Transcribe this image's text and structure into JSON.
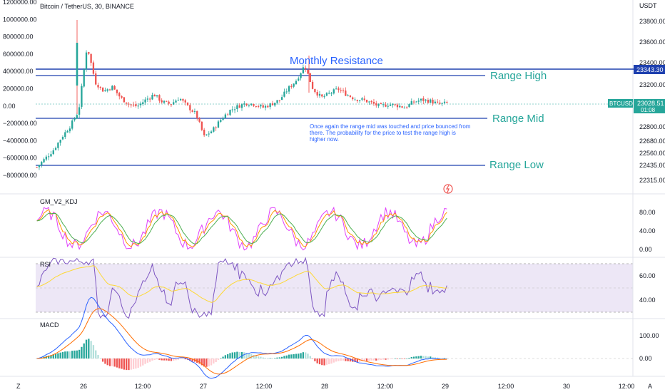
{
  "header": {
    "title": "Bitcoin / TetherUS, 30, BINANCE",
    "price_label": "USDT"
  },
  "left_axis": {
    "ticks": [
      "1200000.00",
      "1000000.00",
      "800000.00",
      "600000.00",
      "400000.00",
      "200000.00",
      "0.00",
      "−200000.00",
      "−400000.00",
      "−600000.00",
      "−800000.00"
    ]
  },
  "price_axis": {
    "ticks": [
      "23800.00",
      "23600.00",
      "23400.00",
      "23200.00",
      "22800.00",
      "22680.00",
      "22560.00",
      "22435.00",
      "22315.00"
    ],
    "resistance_tag": "23343.30",
    "symbol_tag": "BTCUSDT",
    "last_price": "23028.51",
    "countdown": "01:08"
  },
  "levels": {
    "monthly_resistance": "Monthly Resistance",
    "range_high": "Range High",
    "range_mid": "Range Mid",
    "range_low": "Range Low"
  },
  "annotation": [
    "Once again the range mid was touched and price bounced from",
    "there. The probability for the price to test the range high is",
    "higher now."
  ],
  "kdj_pane": {
    "title": "GM_V2_KDJ",
    "ticks": [
      "80.00",
      "40.00",
      "0.00"
    ]
  },
  "rsi_pane": {
    "title": "RSI",
    "ticks": [
      "60.00",
      "40.00"
    ]
  },
  "macd_pane": {
    "title": "MACD",
    "ticks": [
      "100.00",
      "0.00"
    ]
  },
  "time_axis": {
    "labels": [
      "26",
      "12:00",
      "27",
      "12:00",
      "28",
      "12:00",
      "29",
      "12:00",
      "30",
      "12:00"
    ]
  },
  "footer": {
    "left_icon": "Z",
    "right_icon": "A"
  },
  "colors": {
    "up": "#26a69a",
    "down": "#ef5350",
    "level_line": "#1e40af",
    "text_teal": "#26a69a",
    "text_blue": "#2962ff",
    "k": "#e040fb",
    "d": "#ff9800",
    "j": "#4caf50",
    "rsi": "#7e57c2",
    "rsi_ma": "#fdd835",
    "macd": "#2962ff",
    "signal": "#ff6d00"
  },
  "chart_data": {
    "type": "candlestick",
    "title": "Bitcoin / TetherUS, 30, BINANCE",
    "x_labels": [
      "26",
      "12:00",
      "27",
      "12:00",
      "28",
      "12:00",
      "29",
      "12:00",
      "30",
      "12:00"
    ],
    "levels": [
      {
        "label": "Monthly Resistance",
        "value": 23343.3
      },
      {
        "label": "Range High",
        "value": 23290
      },
      {
        "label": "Range Mid",
        "value": 22890
      },
      {
        "label": "Range Low",
        "value": 22445
      }
    ],
    "price_close_path": [
      22440,
      22520,
      22600,
      22720,
      22820,
      22960,
      23560,
      23220,
      23140,
      23180,
      23080,
      23020,
      23000,
      23060,
      23110,
      23040,
      23020,
      23080,
      23000,
      22930,
      22720,
      22780,
      22880,
      22960,
      23000,
      23030,
      23020,
      22990,
      23020,
      23060,
      23160,
      23240,
      23380,
      23160,
      23080,
      23120,
      23160,
      23110,
      23070,
      23060,
      23030,
      23000,
      23020,
      23010,
      22990,
      23040,
      23060,
      23050,
      23020,
      23028.51
    ],
    "kdj_ylim": [
      0,
      100
    ],
    "rsi_ylim": [
      20,
      80
    ],
    "macd_ylim": [
      -60,
      160
    ],
    "last_price": 23028.51
  }
}
